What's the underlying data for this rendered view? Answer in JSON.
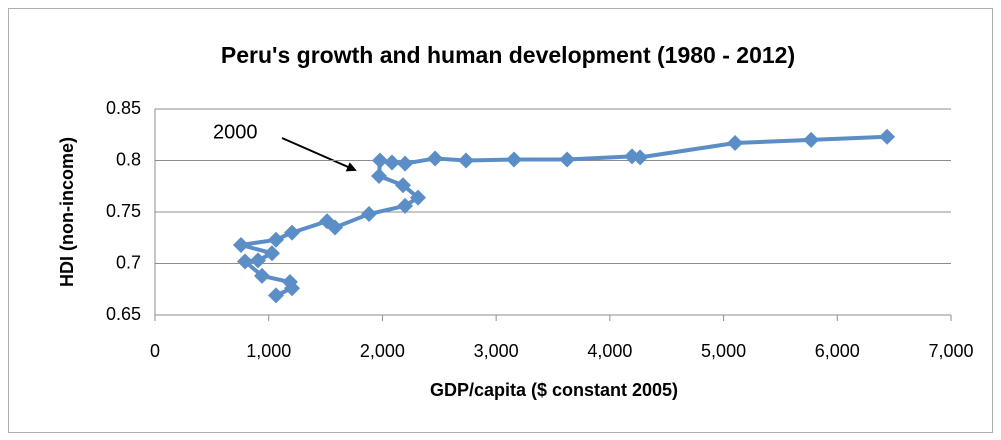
{
  "chart_data": {
    "type": "line",
    "title": "Peru's growth and human development (1980 - 2012)",
    "xlabel": "GDP/capita ($ constant 2005)",
    "ylabel": "HDI (non-income)",
    "annotation": "2000",
    "x": [
      1064,
      1205,
      1187,
      941,
      792,
      906,
      1029,
      756,
      1064,
      1205,
      1513,
      1583,
      1882,
      2199,
      2313,
      2181,
      1970,
      1979,
      2084,
      2199,
      2463,
      2735,
      3157,
      3624,
      4195,
      4266,
      5101,
      5770,
      6438
    ],
    "series": [
      {
        "color": "#5b8ec6",
        "values": [
          0.669,
          0.676,
          0.682,
          0.688,
          0.702,
          0.703,
          0.71,
          0.718,
          0.723,
          0.73,
          0.741,
          0.735,
          0.748,
          0.756,
          0.764,
          0.776,
          0.785,
          0.8,
          0.798,
          0.797,
          0.802,
          0.8,
          0.801,
          0.801,
          0.804,
          0.803,
          0.817,
          0.82,
          0.823
        ]
      }
    ],
    "xlim": [
      0,
      7000
    ],
    "xticks": [
      0,
      {
        "value": 1000,
        "label": "1,000"
      },
      {
        "value": 2000,
        "label": "2,000"
      },
      {
        "value": 3000,
        "label": "3,000"
      },
      {
        "value": 4000,
        "label": "4,000"
      },
      {
        "value": 5000,
        "label": "5,000"
      },
      {
        "value": 6000,
        "label": "6,000"
      },
      {
        "value": 7000,
        "label": "7,000"
      }
    ],
    "ylim": [
      0.65,
      0.85
    ],
    "yticks": [
      0.65,
      0.7,
      0.75,
      0.8,
      0.85
    ],
    "grid": true
  }
}
